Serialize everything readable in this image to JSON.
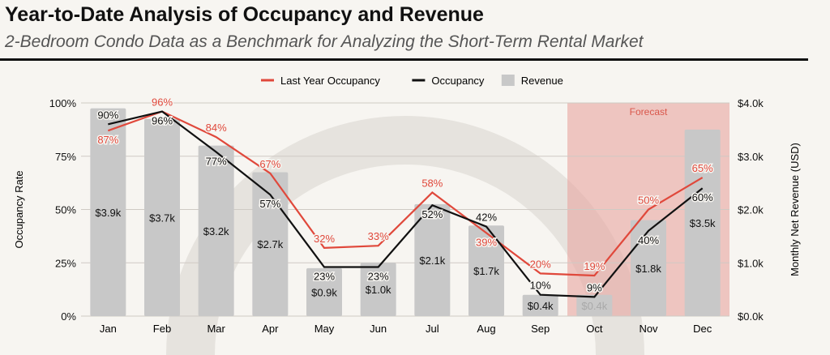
{
  "header": {
    "title": "Year-to-Date Analysis of Occupancy and Revenue",
    "subtitle": "2-Bedroom Condo Data as a Benchmark for Analyzing the Short-Term Rental Market"
  },
  "chart_data": {
    "type": "bar+line",
    "categories": [
      "Jan",
      "Feb",
      "Mar",
      "Apr",
      "May",
      "Jun",
      "Jul",
      "Aug",
      "Sep",
      "Oct",
      "Nov",
      "Dec"
    ],
    "series": [
      {
        "name": "Last Year Occupancy",
        "type": "line",
        "axis": "left",
        "color": "#e0483b",
        "values": [
          87,
          96,
          84,
          67,
          32,
          33,
          58,
          39,
          20,
          19,
          50,
          65
        ],
        "labels": [
          "87%",
          "96%",
          "84%",
          "67%",
          "32%",
          "33%",
          "58%",
          "39%",
          "20%",
          "19%",
          "50%",
          "65%"
        ]
      },
      {
        "name": "Occupancy",
        "type": "line",
        "axis": "left",
        "color": "#111111",
        "values": [
          90,
          96,
          77,
          57,
          23,
          23,
          52,
          42,
          10,
          9,
          40,
          60
        ],
        "labels": [
          "90%",
          "96%",
          "77%",
          "57%",
          "23%",
          "23%",
          "52%",
          "42%",
          "10%",
          "9%",
          "40%",
          "60%"
        ]
      },
      {
        "name": "Revenue",
        "type": "bar",
        "axis": "right",
        "color": "#c8c8c8",
        "values": [
          3.9,
          3.7,
          3.2,
          2.7,
          0.9,
          1.0,
          2.1,
          1.7,
          0.4,
          0.4,
          1.8,
          3.5
        ],
        "labels": [
          "$3.9k",
          "$3.7k",
          "$3.2k",
          "$2.7k",
          "$0.9k",
          "$1.0k",
          "$2.1k",
          "$1.7k",
          "$0.4k",
          "$0.4k",
          "$1.8k",
          "$3.5k"
        ]
      }
    ],
    "ylabel": "Occupancy Rate",
    "ylim": [
      0,
      100
    ],
    "yticks": [
      "0%",
      "25%",
      "50%",
      "75%",
      "100%"
    ],
    "y2label": "Monthly Net Revenue (USD)",
    "y2lim": [
      0,
      4
    ],
    "y2ticks": [
      "$0.0k",
      "$1.0k",
      "$2.0k",
      "$3.0k",
      "$4.0k"
    ],
    "forecast": {
      "label": "Forecast",
      "from": "Oct",
      "to": "Dec",
      "color": "#e8a5a0"
    },
    "legend": "top",
    "grid": true
  }
}
